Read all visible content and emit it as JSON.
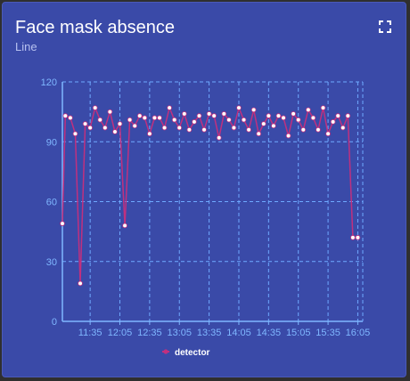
{
  "widget": {
    "title": "Face mask absence",
    "subtitle": "Line",
    "expand_icon": "expand-icon"
  },
  "colors": {
    "card_bg": "#3a4aa8",
    "axis": "#7fb7ff",
    "grid": "#6fa9ff",
    "series_line": "#c0307f",
    "point": "#ffffff"
  },
  "chart_data": {
    "type": "line",
    "title": "",
    "xlabel": "",
    "ylabel": "",
    "ylim": [
      0,
      120
    ],
    "xlim": [
      "11:07",
      "16:10"
    ],
    "yticks": [
      "0",
      "30",
      "60",
      "90",
      "120"
    ],
    "xticks": [
      "11:35",
      "12:05",
      "12:35",
      "13:05",
      "13:35",
      "14:05",
      "14:35",
      "15:05",
      "15:35",
      "16:05"
    ],
    "grid": true,
    "legend_position": "bottom-left",
    "series": [
      {
        "name": "detector",
        "x": [
          "11:07",
          "11:10",
          "11:15",
          "11:20",
          "11:25",
          "11:30",
          "11:35",
          "11:40",
          "11:45",
          "11:50",
          "11:55",
          "12:00",
          "12:05",
          "12:10",
          "12:15",
          "12:20",
          "12:25",
          "12:30",
          "12:35",
          "12:40",
          "12:45",
          "12:50",
          "12:55",
          "13:00",
          "13:05",
          "13:10",
          "13:15",
          "13:20",
          "13:25",
          "13:30",
          "13:35",
          "13:40",
          "13:45",
          "13:50",
          "13:55",
          "14:00",
          "14:05",
          "14:10",
          "14:15",
          "14:20",
          "14:25",
          "14:30",
          "14:35",
          "14:40",
          "14:45",
          "14:50",
          "14:55",
          "15:00",
          "15:05",
          "15:10",
          "15:15",
          "15:20",
          "15:25",
          "15:30",
          "15:35",
          "15:40",
          "15:45",
          "15:50",
          "15:55",
          "16:00",
          "16:05"
        ],
        "y": [
          49,
          103,
          102,
          94,
          19,
          99,
          97,
          107,
          101,
          97,
          105,
          95,
          99,
          48,
          101,
          98,
          103,
          102,
          94,
          102,
          102,
          97,
          107,
          101,
          97,
          104,
          96,
          100,
          103,
          96,
          104,
          103,
          92,
          104,
          101,
          97,
          107,
          101,
          96,
          106,
          94,
          99,
          103,
          98,
          103,
          102,
          93,
          104,
          101,
          96,
          106,
          102,
          96,
          107,
          94,
          100,
          103,
          97,
          103,
          42,
          42
        ]
      }
    ]
  }
}
